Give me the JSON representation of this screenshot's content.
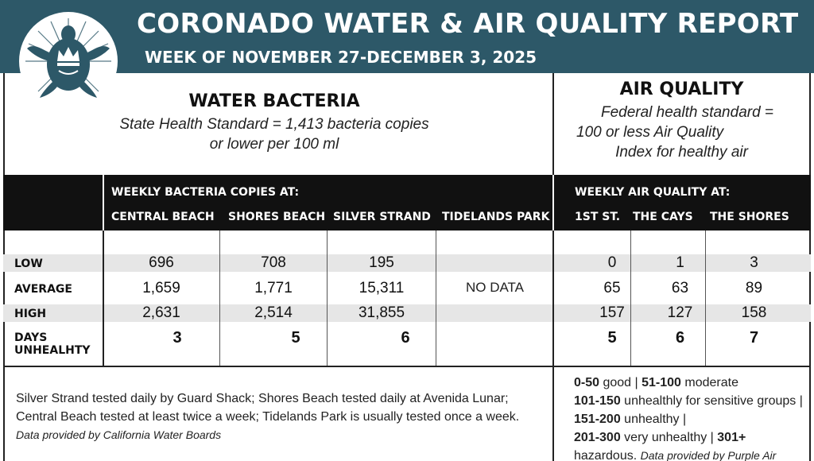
{
  "header": {
    "title": "CORONADO WATER & AIR QUALITY REPORT",
    "subtitle": "WEEK OF NOVEMBER 27-DECEMBER 3, 2025",
    "logo_icon": "turtle-crown-logo-icon",
    "band_color": "#2d5868"
  },
  "water": {
    "heading": "WATER BACTERIA",
    "standard_line1": "State Health Standard  = 1,413 bacteria copies",
    "standard_line2": "or lower per 100 ml"
  },
  "air": {
    "heading": "AIR QUALITY",
    "standard_line1": "Federal health standard =",
    "standard_line2": "100 or less Air Quality",
    "standard_line3": "Index for healthy air"
  },
  "table": {
    "water_group_header": "WEEKLY BACTERIA COPIES AT:",
    "air_group_header": "WEEKLY AIR QUALITY AT:",
    "water_columns": [
      "CENTRAL BEACH",
      "SHORES BEACH",
      "SILVER STRAND",
      "TIDELANDS PARK"
    ],
    "air_columns": [
      "1ST ST.",
      "THE CAYS",
      "THE SHORES"
    ],
    "rows": [
      {
        "label": "LOW",
        "water": [
          "696",
          "708",
          "195",
          ""
        ],
        "air": [
          "0",
          "1",
          "3"
        ]
      },
      {
        "label": "AVERAGE",
        "water": [
          "1,659",
          "1,771",
          "15,311",
          ""
        ],
        "air": [
          "65",
          "63",
          "89"
        ]
      },
      {
        "label": "HIGH",
        "water": [
          "2,631",
          "2,514",
          "31,855",
          ""
        ],
        "air": [
          "157",
          "127",
          "158"
        ]
      },
      {
        "label_line1": "DAYS",
        "label_line2": "UNHEALHTY",
        "water": [
          "3",
          "5",
          "6",
          ""
        ],
        "air": [
          "5",
          "6",
          "7"
        ]
      }
    ],
    "tidelands_note": "NO DATA"
  },
  "footer_water": {
    "text": "Silver Strand tested daily by Guard Shack; Shores Beach tested daily at Avenida Lunar; Central Beach tested at least twice a week; Tidelands Park is usually tested once a week.",
    "source": "Data provided by California Water Boards"
  },
  "footer_air": {
    "r1": "0-50",
    "r1_text": " good | ",
    "r2": "51-100",
    "r2_text": " moderate",
    "r3": "101-150",
    "r3_text": " unhealthly for sensitive groups | ",
    "r4": "151-200",
    "r4_text": " unhealthy | ",
    "r5": "201-300",
    "r5_text": " very unhealthy | ",
    "r6": "301+",
    "r6_text": " hazardous.",
    "source": "Data provided by Purple Air"
  }
}
